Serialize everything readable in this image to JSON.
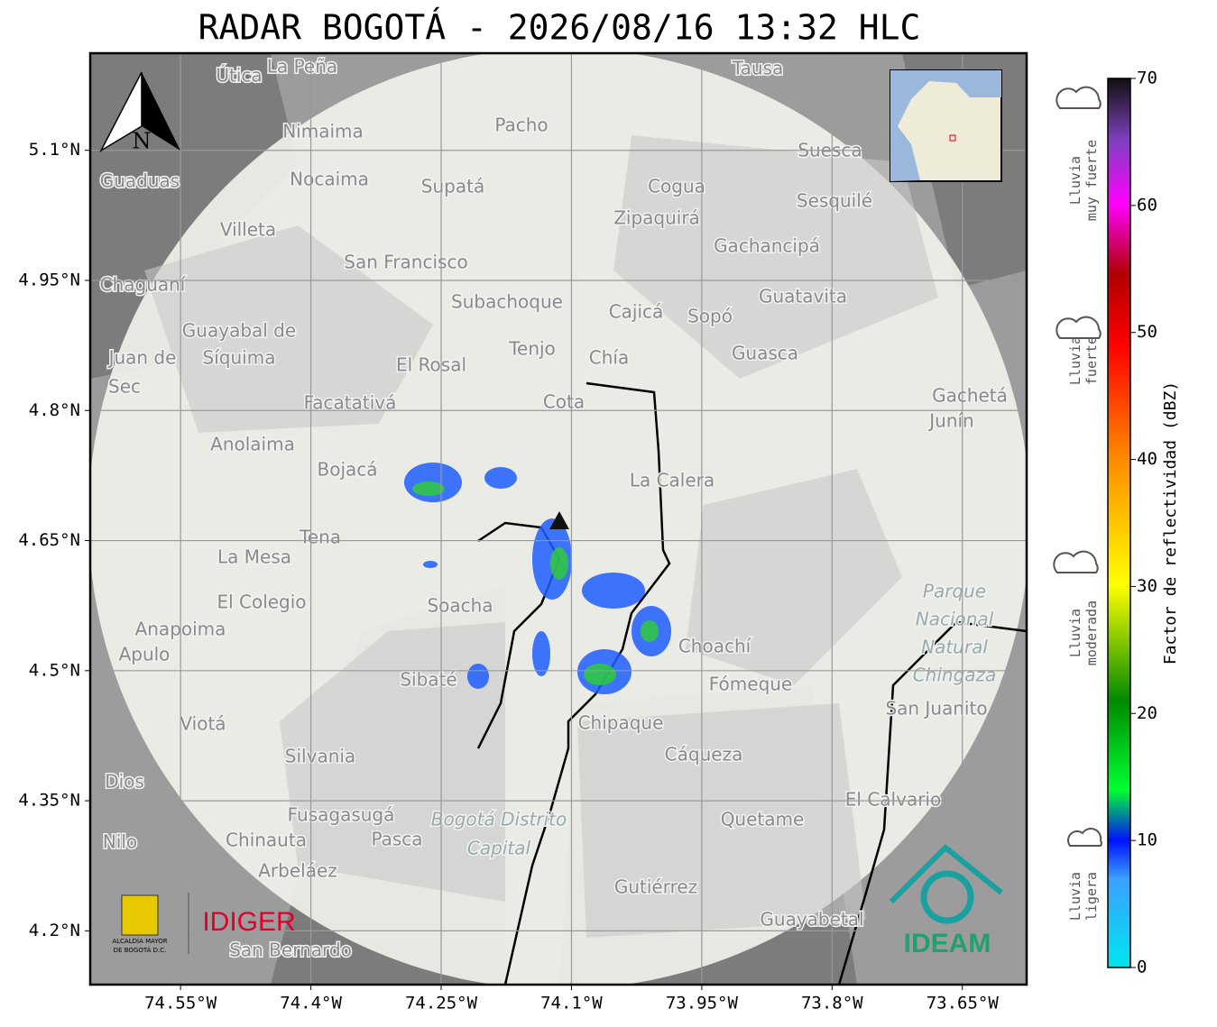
{
  "title": "RADAR BOGOTÁ - 2026/08/16 13:32 HLC",
  "map": {
    "xlim": [
      -74.654,
      -73.576
    ],
    "ylim": [
      4.138,
      5.212
    ],
    "xticks": [
      {
        "value": -74.55,
        "label": "74.55°W"
      },
      {
        "value": -74.4,
        "label": "74.4°W"
      },
      {
        "value": -74.25,
        "label": "74.25°W"
      },
      {
        "value": -74.1,
        "label": "74.1°W"
      },
      {
        "value": -73.95,
        "label": "73.95°W"
      },
      {
        "value": -73.8,
        "label": "73.8°W"
      },
      {
        "value": -73.65,
        "label": "73.65°W"
      }
    ],
    "yticks": [
      {
        "value": 4.2,
        "label": "4.2°N"
      },
      {
        "value": 4.35,
        "label": "4.35°N"
      },
      {
        "value": 4.5,
        "label": "4.5°N"
      },
      {
        "value": 4.65,
        "label": "4.65°N"
      },
      {
        "value": 4.8,
        "label": "4.8°N"
      },
      {
        "value": 4.95,
        "label": "4.95°N"
      },
      {
        "value": 5.1,
        "label": "5.1°N"
      }
    ],
    "grid": true,
    "north": "N",
    "places": [
      "La Peña",
      "Útica",
      "Tausa",
      "Pacho",
      "Nimaima",
      "Suesca",
      "Guaduas",
      "Nocaima",
      "Supatá",
      "Cogua",
      "Sesquilé",
      "Zipaquirá",
      "Villeta",
      "Gachancipá",
      "San Francisco",
      "Chaguaní",
      "Guatavita",
      "Subachoque",
      "Cajicá",
      "Sopó",
      "Guayabal de",
      "Síquima",
      "Tenjo",
      "Chía",
      "Guasca",
      "El Rosal",
      "Facatativá",
      "Cota",
      "Gachetá",
      "Junín",
      "Anolaima",
      "Bojacá",
      "La Calera",
      "Tena",
      "La Mesa",
      "Soacha",
      "El Colegio",
      "Anapoima",
      "Apulo",
      "Choachí",
      "Sibaté",
      "Fómeque",
      "San Juanito",
      "Viotá",
      "Chipaque",
      "Silvania",
      "Cáqueza",
      "El Calvario",
      "Fusagasugá",
      "Quetame",
      "Chinauta",
      "Pasca",
      "Nilo",
      "Arbeláez",
      "Gutiérrez",
      "Guayabetal",
      "San Bernardo",
      "Dios",
      "Juan de",
      "Sec"
    ],
    "park": [
      "Parque",
      "Nacional",
      "Natural",
      "Chingaza"
    ],
    "district": [
      "Bogotá Distrito",
      "Capital"
    ]
  },
  "colorbar": {
    "lim": [
      0,
      70
    ],
    "ticks": [
      0,
      10,
      20,
      30,
      40,
      50,
      60,
      70
    ],
    "label": "Factor de reflectividad (dBZ)"
  },
  "rain_levels": [
    [
      "Lluvia",
      "muy fuerte"
    ],
    [
      "Lluvia",
      "fuerte"
    ],
    [
      "Lluvia",
      "moderada"
    ],
    [
      "Lluvia",
      "ligera"
    ]
  ],
  "logos": {
    "alcaldia": [
      "ALCALDÍA MAYOR",
      "DE BOGOTÁ D.C."
    ],
    "idiger": "IDIGER",
    "ideam": "IDEAM"
  }
}
